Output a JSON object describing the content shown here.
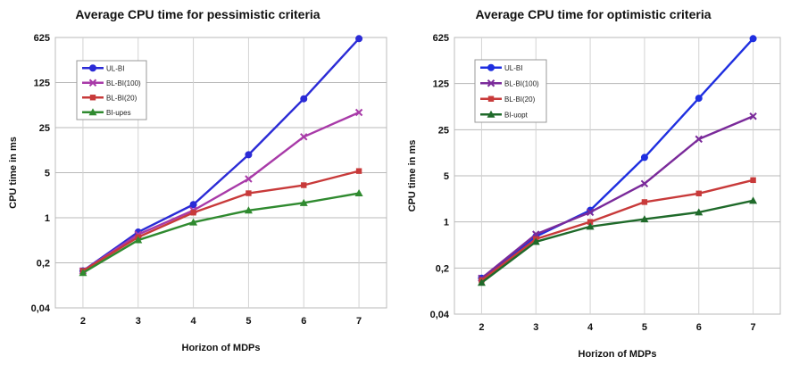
{
  "chart_data": [
    {
      "type": "line",
      "title": "Average CPU time for pessimistic criteria",
      "xlabel": "Horizon of MDPs",
      "ylabel": "CPU time in ms",
      "yscale": "log",
      "x": [
        2,
        3,
        4,
        5,
        6,
        7
      ],
      "xticks": [
        "2",
        "3",
        "4",
        "5",
        "6",
        "7"
      ],
      "yticks": [
        0.04,
        0.2,
        1,
        5,
        25,
        125,
        625
      ],
      "yticklabels": [
        "0,04",
        "0,2",
        "1",
        "5",
        "25",
        "125",
        "625"
      ],
      "ylim": [
        0.04,
        625
      ],
      "grid": true,
      "legend": "top-left",
      "series": [
        {
          "name": "UL-BI",
          "color": "#2b2bd6",
          "marker": "circle",
          "values": [
            0.15,
            0.6,
            1.6,
            9.5,
            70,
            600
          ]
        },
        {
          "name": "BL-BI(100)",
          "color": "#a83aa8",
          "marker": "x",
          "values": [
            0.15,
            0.55,
            1.3,
            4.0,
            18,
            43
          ]
        },
        {
          "name": "BL-BI(20)",
          "color": "#c83a3a",
          "marker": "square",
          "values": [
            0.15,
            0.5,
            1.2,
            2.4,
            3.2,
            5.3
          ]
        },
        {
          "name": "BI-upes",
          "color": "#2f8a2f",
          "marker": "triangle",
          "values": [
            0.14,
            0.45,
            0.85,
            1.3,
            1.7,
            2.4
          ]
        }
      ]
    },
    {
      "type": "line",
      "title": "Average CPU time for optimistic criteria",
      "xlabel": "Horizon of MDPs",
      "ylabel": "CPU time in ms",
      "yscale": "log",
      "x": [
        2,
        3,
        4,
        5,
        6,
        7
      ],
      "xticks": [
        "2",
        "3",
        "4",
        "5",
        "6",
        "7"
      ],
      "yticks": [
        0.04,
        0.2,
        1,
        5,
        25,
        125,
        625
      ],
      "yticklabels": [
        "0,04",
        "0,2",
        "1",
        "5",
        "25",
        "125",
        "625"
      ],
      "ylim": [
        0.04,
        625
      ],
      "grid": true,
      "legend": "top-left",
      "series": [
        {
          "name": "UL-BI",
          "color": "#1f2fe0",
          "marker": "circle",
          "values": [
            0.14,
            0.6,
            1.5,
            9.5,
            75,
            600
          ]
        },
        {
          "name": "BL-BI(100)",
          "color": "#7a2a9a",
          "marker": "x",
          "values": [
            0.14,
            0.65,
            1.4,
            3.8,
            18,
            40
          ]
        },
        {
          "name": "BL-BI(20)",
          "color": "#c83a3a",
          "marker": "square",
          "values": [
            0.13,
            0.55,
            1.0,
            2.0,
            2.7,
            4.3
          ]
        },
        {
          "name": "BI-uopt",
          "color": "#1f6a2a",
          "marker": "triangle",
          "values": [
            0.12,
            0.5,
            0.85,
            1.1,
            1.4,
            2.1
          ]
        }
      ]
    }
  ]
}
